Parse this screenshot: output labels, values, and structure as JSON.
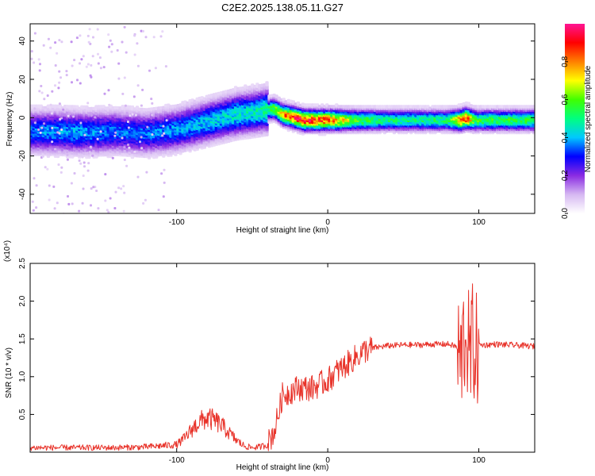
{
  "chart_data": [
    {
      "type": "heatmap",
      "title": "C2E2.2025.138.05.11.G27",
      "xlabel": "Height of straight line (km)",
      "ylabel": "Frequency (Hz)",
      "xlim": [
        -197,
        137
      ],
      "ylim": [
        -50,
        49
      ],
      "xticks": [
        -100,
        0,
        100
      ],
      "xtick_labels": [
        "-100",
        "0",
        "100"
      ],
      "yticks": [
        -40,
        -20,
        0,
        20,
        40
      ],
      "ytick_labels": [
        "-40",
        "-20",
        "0",
        "20",
        "40"
      ],
      "grid": false,
      "colorbar": {
        "label": "Normalized spectral amplitude",
        "range": [
          0,
          1
        ],
        "ticks": [
          0.0,
          0.2,
          0.4,
          0.6,
          0.8
        ],
        "tick_labels": [
          "0.0",
          "0.2",
          "0.4",
          "0.6",
          "0.8"
        ],
        "colormap": [
          "#ffffff",
          "#d6b8f2",
          "#8a2be2",
          "#0000ff",
          "#00c8ff",
          "#00ff80",
          "#40ff00",
          "#ffff00",
          "#ff8000",
          "#ff0000",
          "#ff1493"
        ]
      },
      "ridge": {
        "x": [
          -197,
          -180,
          -160,
          -140,
          -120,
          -100,
          -85,
          -70,
          -60,
          -50,
          -42,
          -35,
          -30,
          -25,
          -20,
          -15,
          -10,
          -5,
          0,
          10,
          20,
          40,
          60,
          80,
          88,
          92,
          97,
          100,
          110,
          120,
          137
        ],
        "frequency_hz": [
          -7,
          -7,
          -7.5,
          -7,
          -8,
          -6,
          -3,
          0,
          2,
          3,
          4,
          5,
          2,
          1,
          0,
          -1,
          -1,
          -1,
          -1,
          -1,
          -1,
          -1,
          -1,
          -1,
          -1,
          0,
          -1,
          -1,
          -1,
          -1,
          -1
        ],
        "peak_amplitude": [
          0.35,
          0.38,
          0.38,
          0.35,
          0.35,
          0.38,
          0.4,
          0.42,
          0.45,
          0.45,
          0.48,
          0.6,
          0.75,
          0.85,
          0.88,
          0.88,
          0.88,
          0.85,
          0.85,
          0.7,
          0.58,
          0.5,
          0.5,
          0.52,
          0.8,
          0.85,
          0.6,
          0.55,
          0.55,
          0.55,
          0.55
        ]
      }
    },
    {
      "type": "line",
      "xlabel": "Height of straight line (km)",
      "ylabel": "SNR (10 * v/v)",
      "y_multiplier_label": "(x10⁴)",
      "xlim": [
        -197,
        137
      ],
      "ylim": [
        0,
        2.5
      ],
      "xticks": [
        -100,
        0,
        100
      ],
      "xtick_labels": [
        "-100",
        "0",
        "100"
      ],
      "yticks": [
        0.5,
        1.0,
        1.5,
        2.0,
        2.5
      ],
      "ytick_labels": [
        "0.5",
        "1.0",
        "1.5",
        "2.0",
        "2.5"
      ],
      "grid": false,
      "series": [
        {
          "color": "#e8332a",
          "x": [
            -197,
            -180,
            -160,
            -140,
            -120,
            -100,
            -95,
            -90,
            -85,
            -80,
            -75,
            -70,
            -65,
            -60,
            -55,
            -50,
            -45,
            -40,
            -35,
            -30,
            -25,
            -20,
            -15,
            -10,
            -5,
            0,
            5,
            10,
            15,
            20,
            25,
            30,
            40,
            50,
            60,
            70,
            80,
            85,
            88,
            90,
            92,
            94,
            96,
            98,
            100,
            105,
            110,
            120,
            130,
            137
          ],
          "y": [
            0.06,
            0.06,
            0.06,
            0.06,
            0.07,
            0.1,
            0.18,
            0.3,
            0.4,
            0.45,
            0.42,
            0.35,
            0.25,
            0.15,
            0.08,
            0.06,
            0.07,
            0.1,
            0.3,
            0.75,
            0.8,
            0.85,
            0.85,
            0.85,
            0.9,
            0.95,
            1.05,
            1.12,
            1.2,
            1.28,
            1.35,
            1.38,
            1.41,
            1.42,
            1.42,
            1.43,
            1.43,
            1.4,
            1.2,
            1.5,
            1.6,
            1.2,
            1.5,
            1.3,
            1.42,
            1.42,
            1.43,
            1.42,
            1.41,
            1.4
          ]
        }
      ]
    }
  ]
}
